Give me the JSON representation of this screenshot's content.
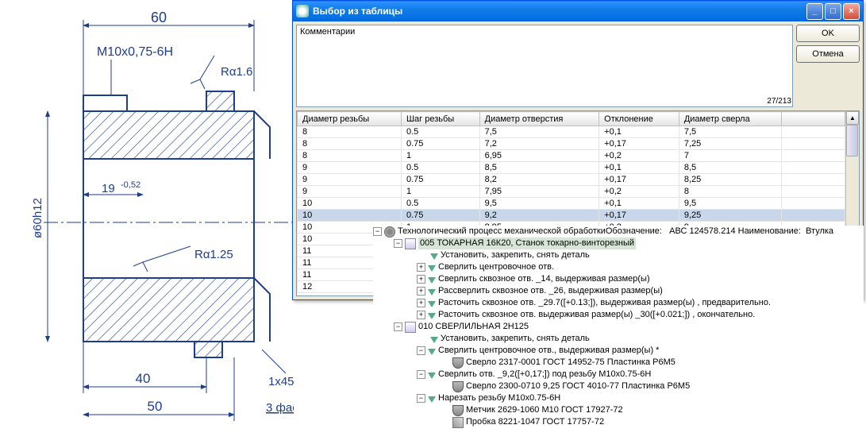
{
  "dialog": {
    "title": "Выбор из таблицы",
    "comment_label": "Комментарии",
    "ok": "OK",
    "cancel": "Отмена",
    "counter": "27/213",
    "columns": [
      "Диаметр резьбы",
      "Шаг резьбы",
      "Диаметр отверстия",
      "Отклонение",
      "Диаметр сверла"
    ],
    "rows": [
      [
        "8",
        "0.5",
        "7,5",
        "+0,1",
        "7,5"
      ],
      [
        "8",
        "0.75",
        "7,2",
        "+0,17",
        "7,25"
      ],
      [
        "8",
        "1",
        "6,95",
        "+0,2",
        "7"
      ],
      [
        "9",
        "0.5",
        "8,5",
        "+0,1",
        "8,5"
      ],
      [
        "9",
        "0.75",
        "8,2",
        "+0,17",
        "8,25"
      ],
      [
        "9",
        "1",
        "7,95",
        "+0,2",
        "8"
      ],
      [
        "10",
        "0.5",
        "9,5",
        "+0,1",
        "9,5"
      ],
      [
        "10",
        "0.75",
        "9,2",
        "+0,17",
        "9,25"
      ],
      [
        "10",
        "1",
        "8,95",
        "+0,2",
        "9"
      ],
      [
        "10",
        "",
        "",
        "",
        ""
      ],
      [
        "11",
        "",
        "",
        "",
        ""
      ],
      [
        "11",
        "",
        "",
        "",
        ""
      ],
      [
        "11",
        "",
        "",
        "",
        ""
      ],
      [
        "12",
        "",
        "",
        "",
        ""
      ]
    ],
    "selected_row": 7
  },
  "tree": {
    "root_prefix": "Технологический процесс механической обработкиОбозначение:",
    "root_code": "АВС 124578.214 Наименование:",
    "root_name": "Втулка",
    "op005": "005  ТОКАРНАЯ 16К20, Станок токарно-винторезный",
    "r1": "Установить, закрепить, снять деталь",
    "r2": "Сверлить центровочное отв.",
    "r3": "Сверлить сквозное отв. _14, выдерживая размер(ы)",
    "r4": "Рассверлить сквозное отв. _26, выдерживая размер(ы)",
    "r5": "Расточить сквозное отв. _29.7([+0.13;]), выдерживая размер(ы) , предварительно.",
    "r6": "Расточить сквозное отв. выдерживая размер(ы) _30([+0.021;]) , окончательно.",
    "op010": "010  СВЕРЛИЛЬНАЯ 2Н125",
    "r7": "Установить, закрепить, снять деталь",
    "r8": "Сверлить центровочное отв., выдерживая размер(ы) *",
    "r8a": "Сверло 2317-0001  ГОСТ 14952-75 Пластинка  Р6М5",
    "r9": "Сверлить отв. _9,2([+0,17;]) под резьбу М10х0.75-6Н",
    "r9a": "Сверло 2300-0710 9,25 ГОСТ 4010-77 Пластинка  Р6М5",
    "r10": "Нарезать резьбу М10х0.75-6Н",
    "r10a": "Метчик 2629-1060 М10 ГОСТ 17927-72",
    "r10b": "Пробка 8221-1047  ГОСТ 17757-72"
  },
  "drawing": {
    "dim60": "60",
    "thread": "M10x0,75-6H",
    "ra16": "Rα1.6",
    "dim19": "19",
    "tol19": "-0,52",
    "ra125": "Rα1.25",
    "dim40": "40",
    "dim50": "50",
    "chamfer": "1x45°",
    "chamfer_note": "3 фаски",
    "diam": "ø60h12"
  }
}
